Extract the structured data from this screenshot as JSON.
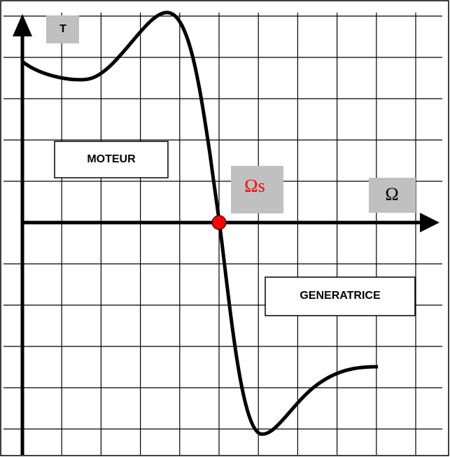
{
  "labels": {
    "y_axis": "T",
    "x_axis": "Ω",
    "sync_speed": "Ωs",
    "motor_region": "MOTEUR",
    "generator_region": "GENERATRICE"
  }
}
